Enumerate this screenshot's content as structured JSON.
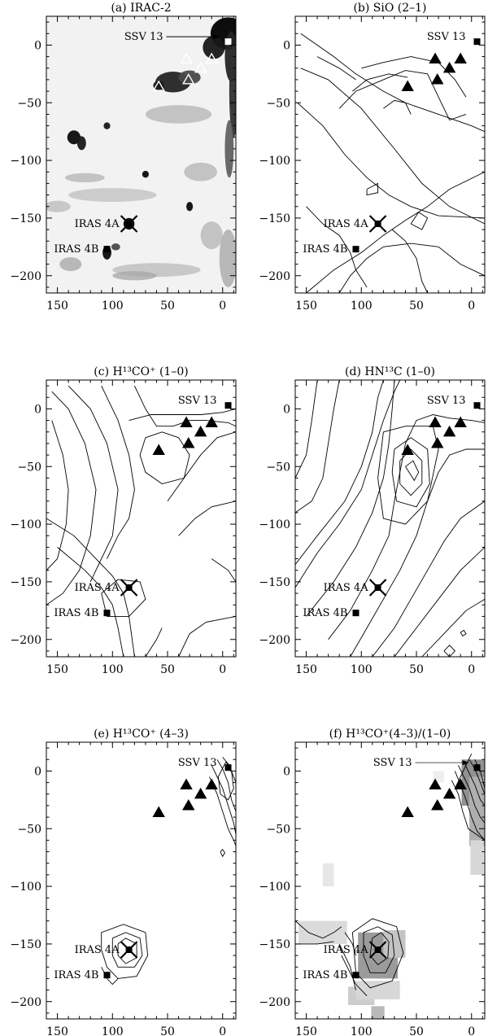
{
  "figure": {
    "description_note": "",
    "panel_letters": [
      "a",
      "b",
      "c",
      "d",
      "e",
      "f"
    ]
  },
  "chart_data": [
    {
      "panel": "a",
      "type": "image",
      "title": "(a) IRAC-2",
      "xlim": [
        160,
        -12
      ],
      "ylim": [
        -215,
        25
      ],
      "xticks": [
        150,
        100,
        50,
        0
      ],
      "yticks": [
        0,
        -50,
        -100,
        -150,
        -200
      ],
      "sources": [
        {
          "name": "SSV 13",
          "x": -5,
          "y": 3,
          "marker": "square-open"
        },
        {
          "name": "IRAS 4A",
          "x": 85,
          "y": -155,
          "marker": "cross"
        },
        {
          "name": "IRAS 4B",
          "x": 105,
          "y": -177,
          "marker": "square"
        }
      ],
      "triangles": [
        [
          58,
          -36
        ],
        [
          31,
          -30
        ],
        [
          20,
          -20
        ],
        [
          10,
          -12
        ],
        [
          33,
          -12
        ]
      ],
      "triangle_style": "open"
    },
    {
      "panel": "b",
      "type": "contour",
      "title": "(b) SiO (2–1)",
      "xlim": [
        160,
        -12
      ],
      "ylim": [
        -215,
        25
      ],
      "xticks": [
        150,
        100,
        50,
        0
      ],
      "yticks": [
        0,
        -50,
        -100,
        -150,
        -200
      ],
      "sources": [
        {
          "name": "SSV 13",
          "x": -5,
          "y": 3,
          "marker": "square"
        },
        {
          "name": "IRAS 4A",
          "x": 85,
          "y": -155,
          "marker": "cross"
        },
        {
          "name": "IRAS 4B",
          "x": 105,
          "y": -177,
          "marker": "square"
        }
      ],
      "triangles": [
        [
          58,
          -36
        ],
        [
          31,
          -30
        ],
        [
          20,
          -20
        ],
        [
          10,
          -12
        ],
        [
          33,
          -12
        ]
      ],
      "triangle_style": "filled"
    },
    {
      "panel": "c",
      "type": "contour",
      "title": "(c) H¹³CO⁺ (1–0)",
      "xlim": [
        160,
        -12
      ],
      "ylim": [
        -215,
        25
      ],
      "xticks": [
        150,
        100,
        50,
        0
      ],
      "yticks": [
        0,
        -50,
        -100,
        -150,
        -200
      ],
      "sources": [
        {
          "name": "SSV 13",
          "x": -5,
          "y": 3,
          "marker": "square"
        },
        {
          "name": "IRAS 4A",
          "x": 85,
          "y": -155,
          "marker": "cross"
        },
        {
          "name": "IRAS 4B",
          "x": 105,
          "y": -177,
          "marker": "square"
        }
      ],
      "triangles": [
        [
          58,
          -36
        ],
        [
          31,
          -30
        ],
        [
          20,
          -20
        ],
        [
          10,
          -12
        ],
        [
          33,
          -12
        ]
      ],
      "triangle_style": "filled"
    },
    {
      "panel": "d",
      "type": "contour",
      "title": "(d) HN¹³C (1–0)",
      "xlim": [
        160,
        -12
      ],
      "ylim": [
        -215,
        25
      ],
      "xticks": [
        150,
        100,
        50,
        0
      ],
      "yticks": [
        0,
        -50,
        -100,
        -150,
        -200
      ],
      "sources": [
        {
          "name": "SSV 13",
          "x": -5,
          "y": 3,
          "marker": "square"
        },
        {
          "name": "IRAS 4A",
          "x": 85,
          "y": -155,
          "marker": "cross"
        },
        {
          "name": "IRAS 4B",
          "x": 105,
          "y": -177,
          "marker": "square"
        }
      ],
      "triangles": [
        [
          58,
          -36
        ],
        [
          31,
          -30
        ],
        [
          20,
          -20
        ],
        [
          10,
          -12
        ],
        [
          33,
          -12
        ]
      ],
      "triangle_style": "filled"
    },
    {
      "panel": "e",
      "type": "contour",
      "title": "(e) H¹³CO⁺ (4–3)",
      "xlim": [
        160,
        -12
      ],
      "ylim": [
        -215,
        25
      ],
      "xticks": [
        150,
        100,
        50,
        0
      ],
      "yticks": [
        0,
        -50,
        -100,
        -150,
        -200
      ],
      "sources": [
        {
          "name": "SSV 13",
          "x": -5,
          "y": 3,
          "marker": "square"
        },
        {
          "name": "IRAS 4A",
          "x": 85,
          "y": -155,
          "marker": "cross"
        },
        {
          "name": "IRAS 4B",
          "x": 105,
          "y": -177,
          "marker": "square"
        }
      ],
      "triangles": [
        [
          58,
          -36
        ],
        [
          31,
          -30
        ],
        [
          20,
          -20
        ],
        [
          10,
          -12
        ],
        [
          33,
          -12
        ]
      ],
      "triangle_style": "filled"
    },
    {
      "panel": "f",
      "type": "contour",
      "title": "(f) H¹³CO⁺(4–3)/(1–0)",
      "xlim": [
        160,
        -12
      ],
      "ylim": [
        -215,
        25
      ],
      "xticks": [
        150,
        100,
        50,
        0
      ],
      "yticks": [
        0,
        -50,
        -100,
        -150,
        -200
      ],
      "sources": [
        {
          "name": "SSV 13",
          "x": -5,
          "y": 3,
          "marker": "square"
        },
        {
          "name": "IRAS 4A",
          "x": 85,
          "y": -155,
          "marker": "cross"
        },
        {
          "name": "IRAS 4B",
          "x": 105,
          "y": -177,
          "marker": "square"
        }
      ],
      "triangles": [
        [
          58,
          -36
        ],
        [
          31,
          -30
        ],
        [
          20,
          -20
        ],
        [
          10,
          -12
        ],
        [
          33,
          -12
        ]
      ],
      "triangle_style": "filled"
    }
  ]
}
